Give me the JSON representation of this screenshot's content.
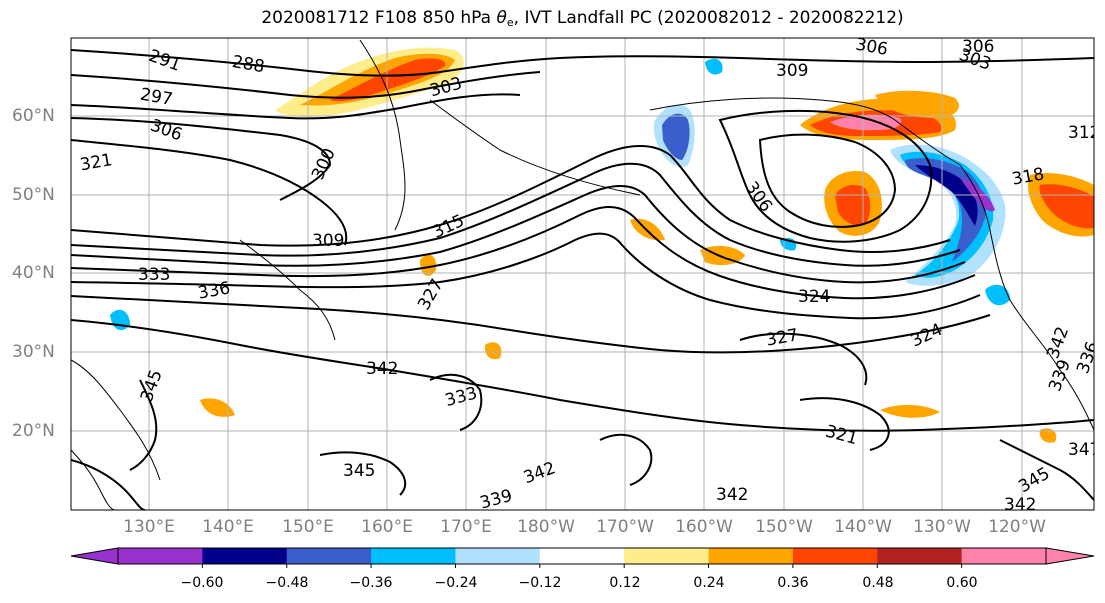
{
  "title": {
    "prefix": "2020081712 F108 850 hPa ",
    "theta": "θ",
    "sub": "e",
    "suffix": ", IVT Landfall PC (2020082012 - 2020082212)"
  },
  "lat_labels": [
    "60°N",
    "50°N",
    "40°N",
    "30°N",
    "20°N"
  ],
  "lon_labels": [
    "130°E",
    "140°E",
    "150°E",
    "160°E",
    "170°E",
    "180°W",
    "170°W",
    "160°W",
    "150°W",
    "140°W",
    "130°W",
    "120°W"
  ],
  "colorbar": {
    "ticks": [
      "−0.60",
      "−0.48",
      "−0.36",
      "−0.24",
      "−0.12",
      "0.12",
      "0.24",
      "0.36",
      "0.48",
      "0.60"
    ],
    "colors": [
      "#9932cc",
      "#00008b",
      "#3a5fcd",
      "#00bfff",
      "#b0e2ff",
      "#ffffff",
      "#ffec8b",
      "#ffa500",
      "#ff4500",
      "#b22222",
      "#ff82ab"
    ]
  },
  "contour_labels": [
    "291",
    "288",
    "297",
    "306",
    "300",
    "303",
    "321",
    "309",
    "315",
    "333",
    "336",
    "327",
    "342",
    "345",
    "342",
    "333",
    "339",
    "342",
    "345",
    "306",
    "309",
    "306",
    "306",
    "303",
    "312",
    "324",
    "327",
    "324",
    "321",
    "339",
    "336",
    "342",
    "345",
    "347",
    "318",
    "342"
  ]
}
